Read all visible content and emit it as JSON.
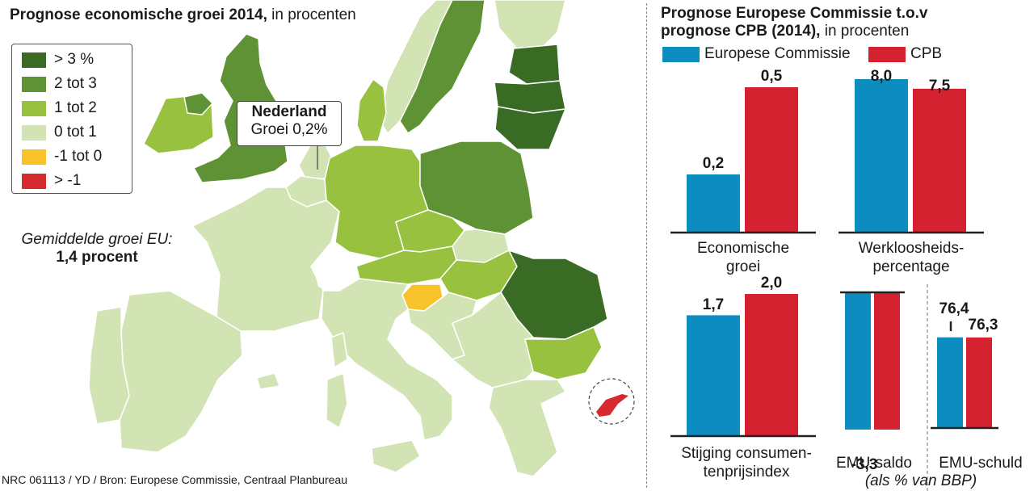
{
  "map": {
    "title_bold": "Prognose economische groei 2014,",
    "title_rest": " in procenten",
    "legend": [
      {
        "label": "> 3 %",
        "color": "#3a6b25"
      },
      {
        "label": "2 tot 3",
        "color": "#5e9235"
      },
      {
        "label": "1 tot 2",
        "color": "#97c13e"
      },
      {
        "label": "0 tot 1",
        "color": "#d3e4b4"
      },
      {
        "label": "-1 tot 0",
        "color": "#f8c22a"
      },
      {
        "label": "> -1",
        "color": "#d52b2e"
      }
    ],
    "callout": {
      "title": "Nederland",
      "value": "Groei 0,2%"
    },
    "average": {
      "label": "Gemiddelde groei EU:",
      "value": "1,4 procent"
    },
    "credit": "NRC 061113 / YD / Bron: Europese Commissie, Centraal Planbureau",
    "sea_color": "#ffffff"
  },
  "chart_data": {
    "type": "bar",
    "title_bold_line1": "Prognose Europese Commissie t.o.v",
    "title_bold_line2": "prognose CPB (2014),",
    "title_rest": " in procenten",
    "series": [
      {
        "name": "Europese Commissie",
        "color": "#0d8cbf",
        "values": [
          0.2,
          8.0,
          1.7,
          -3.3,
          76.4
        ]
      },
      {
        "name": "CPB",
        "color": "#d52231",
        "values": [
          0.5,
          7.5,
          2.0,
          -3.3,
          76.3
        ]
      }
    ],
    "panels": [
      {
        "label_line1": "Economische",
        "label_line2": "groei",
        "ec_label": "0,2",
        "cpb_label": "0,5"
      },
      {
        "label_line1": "Werkloosheids-",
        "label_line2": "percentage",
        "ec_label": "8,0",
        "cpb_label": "7,5"
      },
      {
        "label_line1": "Stijging consumen-",
        "label_line2": "tenprijsindex",
        "ec_label": "1,7",
        "cpb_label": "2,0"
      },
      {
        "label_line1": "EMU-saldo",
        "label_line2": "",
        "ec_label": "-3,3",
        "cpb_label": ""
      },
      {
        "label_line1": "EMU-schuld",
        "label_line2": "",
        "ec_label": "76,4",
        "cpb_label": "76,3"
      }
    ],
    "footnote": "(als % van BBP)"
  }
}
